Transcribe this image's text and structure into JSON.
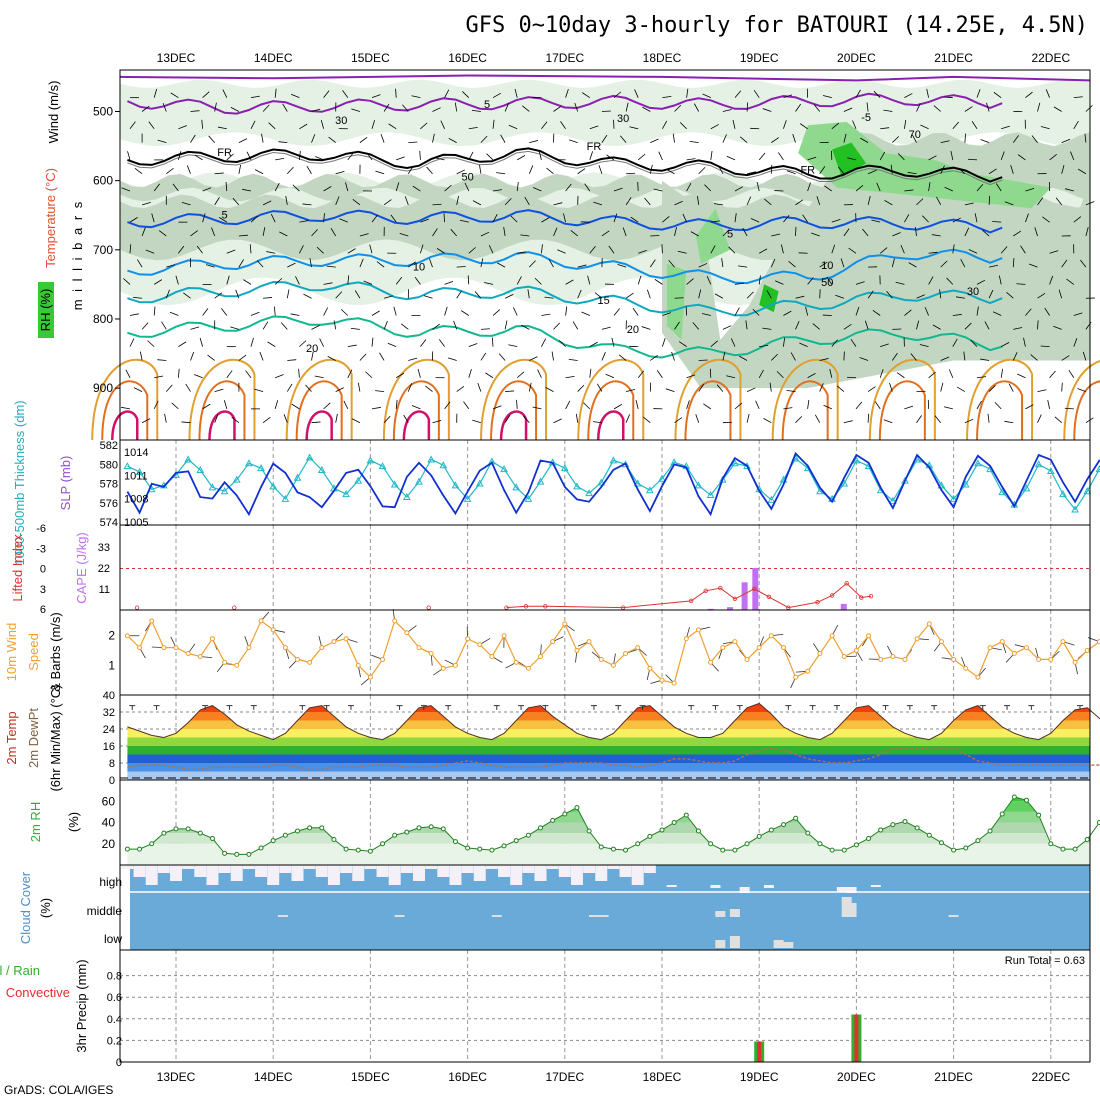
{
  "title": "GFS 0~10day 3-hourly for BATOURI (14.25E, 4.5N)",
  "footer": "GrADS: COLA/IGES",
  "run_total": "Run Total = 0.63",
  "chart_data": [
    {
      "type": "area",
      "panel": "upper-air",
      "x_ticks": [
        "13DEC",
        "14DEC",
        "15DEC",
        "16DEC",
        "17DEC",
        "18DEC",
        "19DEC",
        "20DEC",
        "21DEC",
        "22DEC"
      ],
      "ylabels": [
        "Wind (m/s)",
        "Temperature (°C)",
        "RH (%)",
        "m i l l i b a r s"
      ],
      "y_ticks": [
        500,
        600,
        700,
        800,
        900
      ],
      "ylim": [
        975,
        440
      ],
      "contour_labels": [
        "FR",
        "5",
        "10",
        "15",
        "20",
        "30",
        "50",
        "70",
        "-5"
      ],
      "temperature_lines": [
        {
          "level": "5",
          "p": [
            485,
            495,
            492,
            490,
            488,
            486,
            490,
            485,
            482,
            488
          ]
        },
        {
          "level": "FR",
          "p": [
            570,
            565,
            562,
            575,
            560,
            575,
            580,
            590,
            585,
            595
          ]
        },
        {
          "level": "5",
          "p": [
            660,
            655,
            650,
            655,
            650,
            660,
            665,
            660,
            662,
            668
          ]
        },
        {
          "level": "10",
          "p": [
            730,
            720,
            715,
            715,
            710,
            725,
            740,
            740,
            705,
            712
          ]
        },
        {
          "level": "15",
          "p": [
            770,
            760,
            750,
            765,
            760,
            775,
            790,
            780,
            765,
            770
          ]
        },
        {
          "level": "20",
          "p": [
            820,
            810,
            800,
            820,
            815,
            845,
            850,
            830,
            820,
            840
          ]
        }
      ]
    },
    {
      "type": "line",
      "panel": "thickness-slp",
      "ylabels": [
        "1000-500mb Thickness (dm)",
        "SLP (mb)"
      ],
      "y_ticks_left": [
        574,
        576,
        578,
        580,
        582
      ],
      "y_ticks_right": [
        1005,
        1008,
        1011,
        1014
      ],
      "series": [
        {
          "name": "1000-500mb Thickness (dm)",
          "values": [
            579.8,
            579.2,
            577.4,
            577.8,
            578.9,
            580.5,
            579.4,
            577.6,
            577.2,
            578.4,
            580.1,
            579.6,
            577.7,
            576.4,
            578.6,
            580.7,
            579.4,
            577.5,
            576.9,
            578.3,
            580.4,
            579.8,
            577.9,
            576.6,
            578.2,
            580.5,
            579.9,
            577.8,
            576.4,
            578.0,
            580.3,
            579.5,
            577.6,
            576.4,
            578.2,
            580.2,
            579.6,
            577.7,
            577.0,
            578.1,
            580.4,
            580.0,
            578.0,
            577.3,
            578.5,
            580.2,
            579.8,
            577.8,
            576.8,
            578.4,
            580.1,
            579.8,
            577.4,
            576.3,
            578.4,
            580.6,
            579.6,
            577.2,
            576.4,
            578.0,
            580.4,
            579.8,
            577.3,
            576.2,
            578.3,
            580.5,
            579.9,
            577.8,
            576.4,
            577.9,
            580.1,
            579.5,
            577.1,
            575.8,
            577.5,
            580.0,
            579.3,
            576.9,
            575.3,
            577.2,
            579.5,
            579.2,
            576.3,
            574.6
          ]
        },
        {
          "name": "SLP (mb)",
          "values": [
            1008.9,
            1006.2,
            1009.9,
            1009.5,
            1011.3,
            1011.5,
            1008.2,
            1008.0,
            1010.1,
            1008.4,
            1006.0,
            1009.5,
            1012.5,
            1011.3,
            1008.8,
            1008.2,
            1006.9,
            1009.0,
            1011.3,
            1011.7,
            1009.6,
            1007.0,
            1006.9,
            1010.8,
            1012.6,
            1011.0,
            1008.4,
            1006.1,
            1008.9,
            1011.6,
            1012.6,
            1009.1,
            1006.2,
            1008.8,
            1012.9,
            1012.6,
            1009.5,
            1007.9,
            1007.6,
            1009.5,
            1011.7,
            1012.5,
            1009.2,
            1006.4,
            1009.6,
            1012.4,
            1012.0,
            1008.3,
            1006.0,
            1010.6,
            1013.2,
            1012.2,
            1009.0,
            1006.7,
            1009.8,
            1013.8,
            1012.2,
            1009.4,
            1007.6,
            1010.7,
            1013.6,
            1012.6,
            1009.4,
            1006.8,
            1010.3,
            1013.6,
            1012.0,
            1009.1,
            1006.9,
            1010.8,
            1013.5,
            1012.2,
            1009.5,
            1007.0,
            1010.3,
            1013.6,
            1013.0,
            1010.1,
            1007.6,
            1010.5,
            1012.9,
            1013.1,
            1012.3,
            1013.9
          ]
        }
      ]
    },
    {
      "type": "bar",
      "panel": "stability",
      "ylabels": [
        "Lifted Index",
        "CAPE (J/kg)"
      ],
      "y_ticks_left": [
        "-6",
        "-3",
        "0",
        "3",
        "6"
      ],
      "y_ticks_right": [
        11,
        22,
        33
      ],
      "series": [
        {
          "name": "CAPE (J/kg)",
          "x_days": [
            18.5,
            18.7,
            18.85,
            18.96,
            19.87
          ],
          "values": [
            0.6,
            1.5,
            14.5,
            22.0,
            3.2
          ]
        },
        {
          "name": "Lifted Index",
          "x_days": [
            12.6,
            13.6,
            15.6,
            16.4,
            16.6,
            16.8,
            17.6,
            18.3,
            18.45,
            18.6,
            18.75,
            18.95,
            19.1,
            19.3,
            19.6,
            19.75,
            19.9,
            20.05,
            20.15
          ],
          "values": [
            5.8,
            5.8,
            5.8,
            5.8,
            5.6,
            5.6,
            5.8,
            4.8,
            3.3,
            2.9,
            4.5,
            3.0,
            4.2,
            5.8,
            5.0,
            4.0,
            2.2,
            4.3,
            4.1
          ]
        }
      ]
    },
    {
      "type": "line",
      "panel": "wind10m",
      "ylabels": [
        "10m Wind Speed & Barbs (m/s)"
      ],
      "y_ticks": [
        1,
        2
      ],
      "series": [
        {
          "name": "10m Wind Speed",
          "values": [
            2.0,
            1.6,
            2.5,
            1.6,
            1.6,
            1.4,
            1.3,
            1.9,
            1.1,
            1.0,
            1.6,
            2.5,
            2.2,
            1.6,
            1.2,
            1.1,
            1.6,
            1.8,
            1.9,
            1.0,
            0.6,
            1.2,
            2.5,
            2.1,
            1.6,
            1.4,
            0.9,
            1.0,
            1.9,
            1.7,
            1.3,
            2.0,
            1.1,
            0.9,
            1.3,
            1.8,
            2.4,
            1.5,
            1.8,
            1.2,
            1.0,
            1.4,
            1.6,
            0.9,
            0.5,
            0.4,
            1.9,
            2.2,
            1.1,
            1.6,
            1.8,
            1.2,
            1.6,
            2.0,
            1.6,
            0.6,
            0.8,
            1.4,
            2.0,
            1.3,
            1.5,
            2.0,
            1.2,
            1.3,
            1.2,
            1.9,
            2.4,
            1.8,
            1.2,
            0.9,
            0.6,
            1.6,
            1.8,
            1.4,
            1.6,
            1.2,
            1.2,
            1.8,
            1.1,
            1.5,
            1.8,
            1.0,
            1.1,
            0.8
          ]
        }
      ]
    },
    {
      "type": "area",
      "panel": "temperature",
      "ylabels": [
        "2m Temp",
        "2m DewPt",
        "(6hr Min/Max) (°C)"
      ],
      "y_ticks": [
        0,
        8,
        16,
        24,
        32,
        40
      ],
      "series": [
        {
          "name": "2m Temp",
          "values": [
            25,
            23,
            21,
            20,
            22,
            27,
            33,
            35,
            31,
            26,
            23,
            21,
            19,
            22,
            28,
            34,
            35,
            30,
            25,
            22,
            20,
            19,
            22,
            28,
            34,
            35,
            30,
            25,
            22,
            20,
            19,
            22,
            28,
            34,
            35,
            30,
            26,
            22,
            20,
            19,
            22,
            28,
            34,
            35,
            30,
            25,
            22,
            20,
            20,
            22,
            28,
            34,
            36,
            31,
            25,
            22,
            20,
            19,
            22,
            28,
            34,
            35,
            30,
            25,
            22,
            20,
            19,
            22,
            28,
            33,
            35,
            30,
            25,
            22,
            20,
            19,
            22,
            28,
            33,
            34,
            29,
            25,
            22,
            19
          ]
        },
        {
          "name": "2m DewPt",
          "values": [
            6,
            7,
            7,
            7,
            6,
            5,
            5,
            6,
            6,
            6,
            6,
            6,
            7,
            7,
            6,
            5,
            5,
            6,
            6,
            6,
            7,
            7,
            7,
            6,
            6,
            6,
            7,
            8,
            9,
            8,
            7,
            6,
            6,
            6,
            6,
            7,
            8,
            8,
            8,
            8,
            7,
            7,
            6,
            7,
            8,
            10,
            10,
            9,
            8,
            8,
            9,
            12,
            14,
            15,
            14,
            12,
            10,
            9,
            8,
            8,
            9,
            10,
            12,
            15,
            15,
            15,
            15,
            15,
            15,
            12,
            9,
            8,
            7,
            7,
            7,
            7,
            7,
            7,
            7,
            7,
            7,
            7,
            7,
            7
          ]
        }
      ]
    },
    {
      "type": "area",
      "panel": "rh2m",
      "ylabels": [
        "2m RH",
        "(%)"
      ],
      "y_ticks": [
        20,
        40,
        60
      ],
      "series": [
        {
          "name": "2m RH",
          "values": [
            15,
            15,
            20,
            30,
            34,
            34,
            30,
            25,
            11,
            10,
            10,
            16,
            23,
            28,
            32,
            35,
            35,
            24,
            15,
            14,
            13,
            20,
            28,
            31,
            35,
            36,
            34,
            22,
            16,
            15,
            14,
            18,
            23,
            28,
            35,
            42,
            48,
            54,
            32,
            17,
            15,
            14,
            20,
            27,
            33,
            40,
            47,
            32,
            20,
            14,
            14,
            20,
            27,
            33,
            38,
            44,
            30,
            20,
            14,
            14,
            19,
            25,
            33,
            38,
            41,
            35,
            28,
            21,
            14,
            16,
            23,
            32,
            48,
            64,
            61,
            47,
            20,
            15,
            15,
            24,
            40,
            56,
            68,
            74
          ]
        }
      ]
    },
    {
      "type": "bar",
      "panel": "cloud-cover",
      "ylabels": [
        "Cloud Cover",
        "(%)"
      ],
      "y_ticks": [
        "high",
        "middle",
        "low"
      ]
    },
    {
      "type": "bar",
      "panel": "precip",
      "ylabels": [
        "3hr Precip (mm)",
        "Total / Rain",
        "Convective"
      ],
      "y_ticks": [
        0,
        0.2,
        0.4,
        0.6,
        0.8
      ],
      "ylim": [
        0,
        1
      ],
      "series": [
        {
          "name": "Total",
          "x": [
            "19DEC",
            "20DEC"
          ],
          "values": [
            0.19,
            0.44
          ]
        },
        {
          "name": "Convective",
          "x": [
            "19DEC",
            "20DEC"
          ],
          "values": [
            0.19,
            0.44
          ]
        }
      ]
    }
  ]
}
